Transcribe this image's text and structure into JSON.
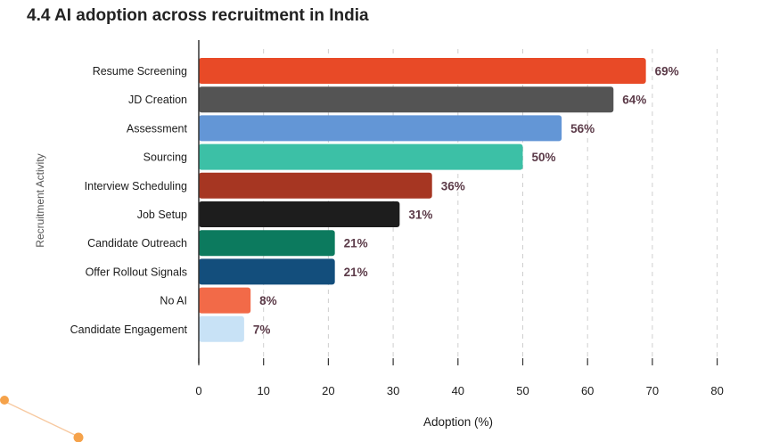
{
  "title": "4.4 AI adoption across recruitment in India",
  "chart_data": {
    "type": "bar",
    "orientation": "horizontal",
    "title": "4.4 AI adoption across recruitment in India",
    "xlabel": "Adoption (%)",
    "ylabel": "Recruitment Activity",
    "xlim": [
      0,
      80
    ],
    "xticks": [
      "0",
      "10",
      "20",
      "30",
      "40",
      "50",
      "60",
      "70",
      "80"
    ],
    "grid": "vertical dashed",
    "categories": [
      "Resume Screening",
      "JD Creation",
      "Assessment",
      "Sourcing",
      "Interview Scheduling",
      "Job Setup",
      "Candidate Outreach",
      "Offer Rollout Signals",
      "No AI",
      "Candidate Engagement"
    ],
    "values": [
      69,
      64,
      56,
      50,
      36,
      31,
      21,
      21,
      8,
      7
    ],
    "value_labels": [
      "69%",
      "64%",
      "56%",
      "50%",
      "36%",
      "31%",
      "21%",
      "21%",
      "8%",
      "7%"
    ],
    "colors": [
      "#e84a27",
      "#545454",
      "#6396d6",
      "#3cc0a6",
      "#a63622",
      "#1d1d1d",
      "#0c7a5e",
      "#134e7c",
      "#f26a48",
      "#c8e2f6"
    ]
  },
  "style": {
    "label_color": "#5b3a48",
    "grid_color": "#cfcfcf",
    "axis_color": "#333333",
    "accent_dot": "#f5a24a"
  }
}
